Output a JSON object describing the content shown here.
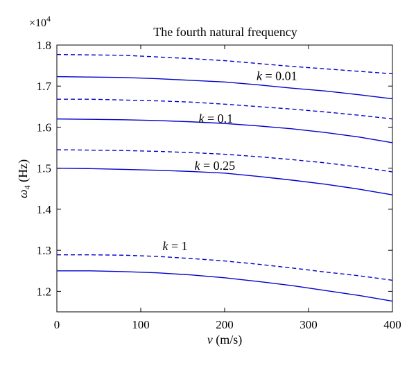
{
  "chart_data": {
    "type": "line",
    "title": "The fourth natural frequency",
    "xlabel": {
      "symbol": "v",
      "units": " (m/s)"
    },
    "ylabel": {
      "symbol": "ω",
      "sub": "4",
      "units": " (Hz)"
    },
    "multiplier": {
      "base": "×10",
      "exp": "4"
    },
    "xlim": [
      0,
      400
    ],
    "ylim": [
      1.15,
      1.8
    ],
    "xticks": [
      0,
      100,
      200,
      300,
      400
    ],
    "xtick_labels": [
      "0",
      "100",
      "200",
      "300",
      "400"
    ],
    "yticks": [
      1.2,
      1.3,
      1.4,
      1.5,
      1.6,
      1.7,
      1.8
    ],
    "ytick_labels": [
      "1.2",
      "1.3",
      "1.4",
      "1.5",
      "1.6",
      "1.7",
      "1.8"
    ],
    "grid": false,
    "line_color": "#0000cc",
    "x": [
      0,
      40,
      80,
      120,
      160,
      200,
      240,
      280,
      320,
      360,
      400
    ],
    "series": [
      {
        "group": "k=0.01",
        "style": "dashed",
        "values": [
          1.777,
          1.776,
          1.775,
          1.771,
          1.767,
          1.762,
          1.755,
          1.748,
          1.742,
          1.736,
          1.73
        ]
      },
      {
        "group": "k=0.01",
        "style": "solid",
        "values": [
          1.723,
          1.722,
          1.721,
          1.718,
          1.714,
          1.71,
          1.703,
          1.695,
          1.688,
          1.679,
          1.669
        ]
      },
      {
        "group": "k=0.1",
        "style": "dashed",
        "values": [
          1.668,
          1.668,
          1.666,
          1.664,
          1.661,
          1.656,
          1.65,
          1.644,
          1.637,
          1.629,
          1.62
        ]
      },
      {
        "group": "k=0.1",
        "style": "solid",
        "values": [
          1.62,
          1.619,
          1.618,
          1.616,
          1.613,
          1.609,
          1.603,
          1.596,
          1.587,
          1.576,
          1.562
        ]
      },
      {
        "group": "k=0.25",
        "style": "dashed",
        "values": [
          1.545,
          1.544,
          1.543,
          1.541,
          1.538,
          1.534,
          1.528,
          1.521,
          1.513,
          1.503,
          1.491
        ]
      },
      {
        "group": "k=0.25",
        "style": "solid",
        "values": [
          1.5,
          1.499,
          1.497,
          1.495,
          1.492,
          1.488,
          1.48,
          1.471,
          1.461,
          1.449,
          1.435
        ]
      },
      {
        "group": "k=1",
        "style": "dashed",
        "values": [
          1.289,
          1.289,
          1.288,
          1.285,
          1.28,
          1.274,
          1.266,
          1.257,
          1.247,
          1.238,
          1.227
        ]
      },
      {
        "group": "k=1",
        "style": "solid",
        "values": [
          1.25,
          1.25,
          1.248,
          1.245,
          1.24,
          1.233,
          1.224,
          1.214,
          1.202,
          1.19,
          1.176
        ]
      }
    ],
    "annotations": [
      {
        "pre": "k",
        "text": " = 0.01",
        "x": 238,
        "y": 1.715
      },
      {
        "pre": "k",
        "text": " = 0.1",
        "x": 169,
        "y": 1.611
      },
      {
        "pre": "k",
        "text": " = 0.25",
        "x": 164,
        "y": 1.496
      },
      {
        "pre": "k",
        "text": " = 1",
        "x": 126,
        "y": 1.3
      }
    ]
  }
}
